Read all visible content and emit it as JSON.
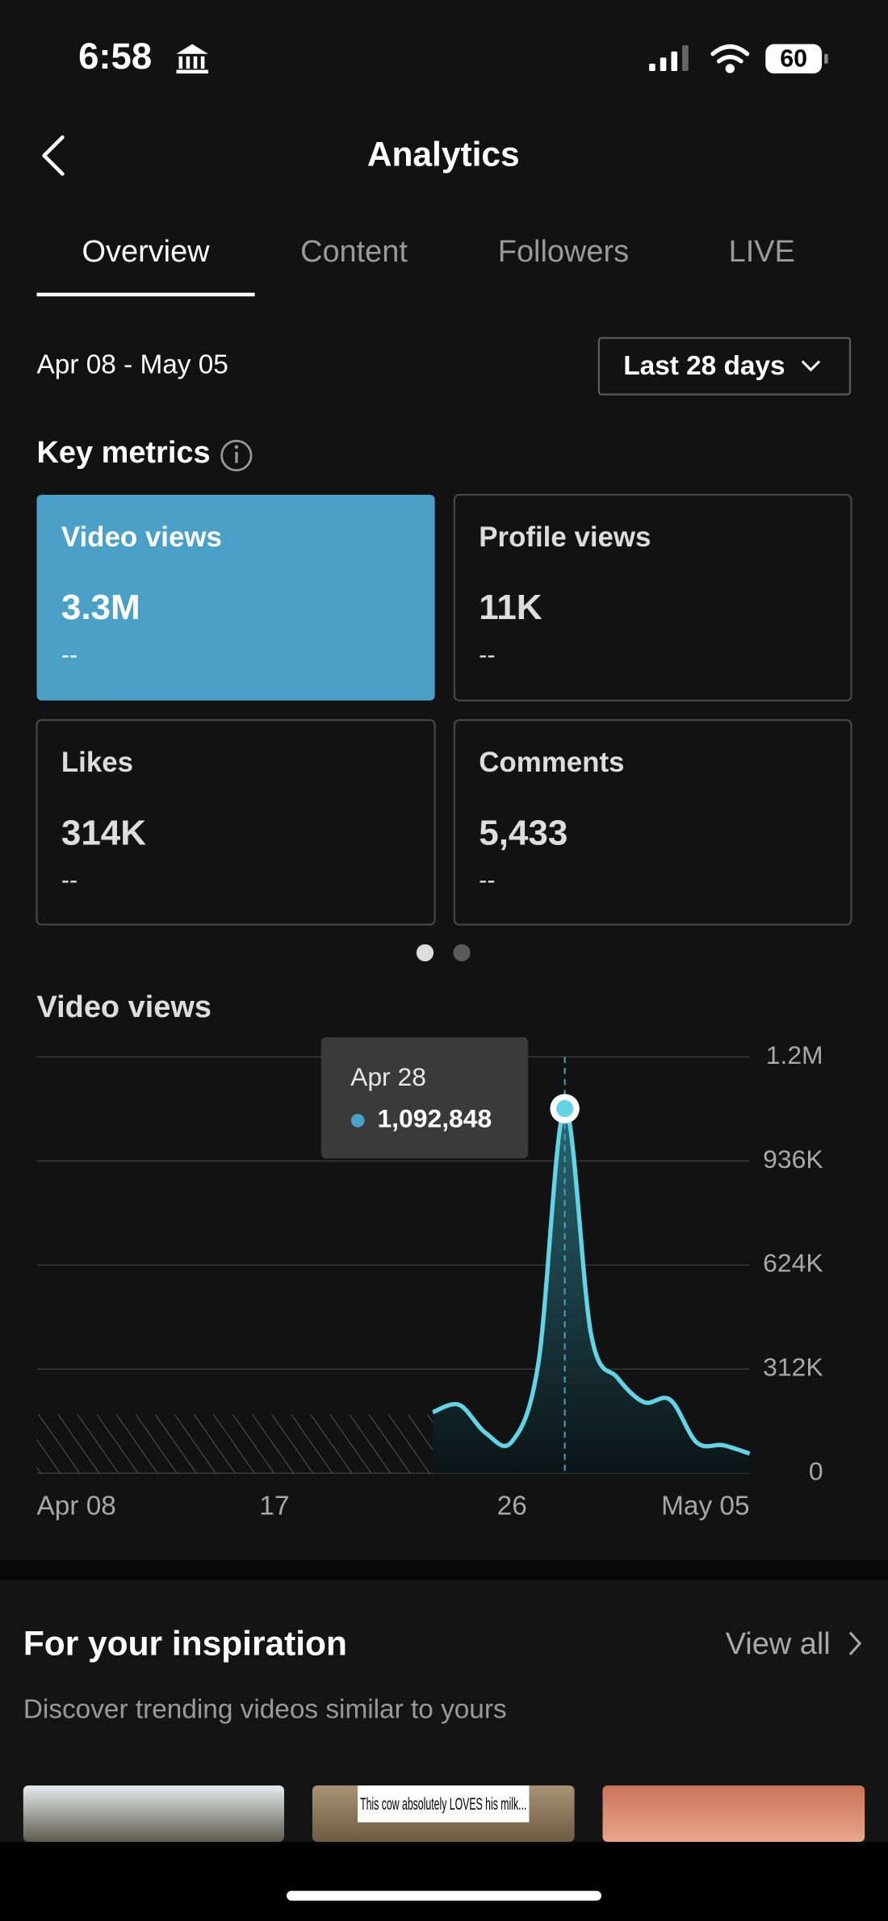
{
  "status_bar": {
    "time": "6:58",
    "battery": "60"
  },
  "header": {
    "title": "Analytics"
  },
  "tabs": [
    "Overview",
    "Content",
    "Followers",
    "LIVE"
  ],
  "date_range": "Apr 08 - May 05",
  "period_filter": "Last 28 days",
  "key_metrics": {
    "title": "Key metrics",
    "cards": [
      {
        "label": "Video views",
        "value": "3.3M",
        "change": "--"
      },
      {
        "label": "Profile views",
        "value": "11K",
        "change": "--"
      },
      {
        "label": "Likes",
        "value": "314K",
        "change": "--"
      },
      {
        "label": "Comments",
        "value": "5,433",
        "change": "--"
      }
    ]
  },
  "chart_data": {
    "type": "line",
    "title": "Video views",
    "categories": [
      "Apr 08",
      null,
      null,
      null,
      null,
      null,
      null,
      null,
      null,
      "17",
      null,
      null,
      null,
      null,
      null,
      null,
      null,
      null,
      "26",
      null,
      null,
      null,
      null,
      null,
      null,
      null,
      null,
      "May 05"
    ],
    "values": [
      null,
      null,
      null,
      null,
      null,
      null,
      null,
      null,
      null,
      null,
      null,
      null,
      null,
      null,
      null,
      183000,
      205000,
      121000,
      95000,
      330000,
      1092848,
      415000,
      286000,
      213000,
      220000,
      92000,
      84000,
      59000
    ],
    "value_labels": [
      null,
      null,
      null,
      null,
      null,
      null,
      null,
      null,
      null,
      null,
      null,
      null,
      null,
      null,
      null,
      null,
      null,
      null,
      null,
      null,
      "1,092,848",
      null,
      null,
      null,
      null,
      null,
      null,
      null
    ],
    "tooltip_title": "Apr 28",
    "color": "#63d3e6",
    "ylim": [
      0,
      1248000
    ],
    "yticks": [
      0,
      {
        "value": 312000,
        "label": "312K"
      },
      {
        "value": 624000,
        "label": "624K"
      },
      {
        "value": 936000,
        "label": "936K"
      },
      {
        "value": 1248000,
        "label": "1.2M"
      }
    ],
    "grid": true
  },
  "inspiration": {
    "title": "For your inspiration",
    "link": "View all",
    "subtitle": "Discover trending videos similar to yours",
    "thumbnail_caption": "This cow absolutely LOVES his milk..."
  }
}
